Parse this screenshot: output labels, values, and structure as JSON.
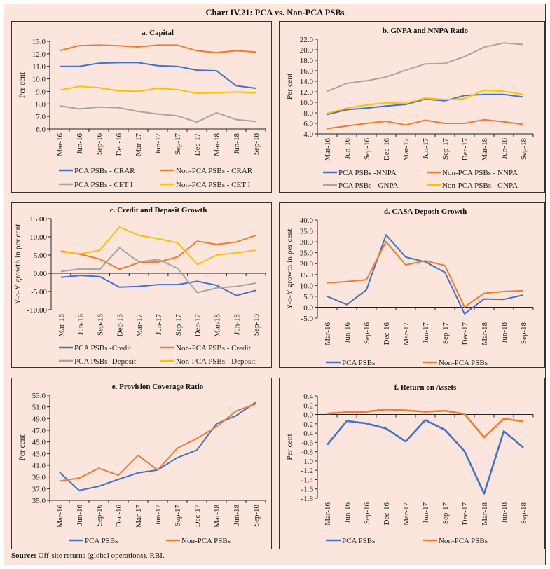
{
  "title": "Chart IV.21: PCA vs. Non-PCA PSBs",
  "source_label": "Source:",
  "source_text": "Off-site returns (global operations), RBI.",
  "colors": {
    "blue": "#4472c4",
    "orange": "#ed7d31",
    "gray": "#a5a5a5",
    "yellow": "#ffc000"
  },
  "chart_data": [
    {
      "id": "a",
      "type": "line",
      "title": "a. Capital",
      "ylabel": "Per cent",
      "ylim": [
        6,
        13
      ],
      "ytick_step": 1,
      "ytick_decimals": 1,
      "categories": [
        "Mar-16",
        "Jun-16",
        "Sep-16",
        "Dec-16",
        "Mar-17",
        "Jun-17",
        "Sep-17",
        "Dec-17",
        "Mar-18",
        "Jun-18",
        "Sep-18"
      ],
      "legend": "bottom",
      "series": [
        {
          "name": "PCA PSBs - CRAR",
          "color": "#4472c4",
          "values": [
            11.0,
            11.0,
            11.25,
            11.3,
            11.3,
            11.05,
            11.0,
            10.7,
            10.65,
            9.45,
            9.25
          ]
        },
        {
          "name": "Non-PCA PSBs - CRAR",
          "color": "#ed7d31",
          "values": [
            12.25,
            12.65,
            12.7,
            12.65,
            12.55,
            12.7,
            12.7,
            12.25,
            12.1,
            12.25,
            12.15
          ]
        },
        {
          "name": "PCA PSBs - CET I",
          "color": "#a5a5a5",
          "values": [
            7.85,
            7.6,
            7.75,
            7.7,
            7.4,
            7.2,
            7.05,
            6.55,
            7.3,
            6.75,
            6.6
          ]
        },
        {
          "name": "Non-PCA PSBs - CET I",
          "color": "#ffc000",
          "values": [
            9.1,
            9.4,
            9.3,
            9.05,
            9.0,
            9.25,
            9.15,
            8.85,
            8.9,
            8.95,
            8.9
          ]
        }
      ]
    },
    {
      "id": "b",
      "type": "line",
      "title": "b. GNPA and NNPA Ratio",
      "ylabel": "Per cent",
      "ylim": [
        4,
        22
      ],
      "ytick_step": 2,
      "ytick_decimals": 1,
      "categories": [
        "Mar-16",
        "Jun-16",
        "Sep-16",
        "Dec-16",
        "Mar-17",
        "Jun-17",
        "Sep-17",
        "Dec-17",
        "Mar-18",
        "Jun-18",
        "Sep-18"
      ],
      "legend": "bottom",
      "series": [
        {
          "name": "PCA PSBs -NNPA",
          "color": "#4472c4",
          "values": [
            7.7,
            8.6,
            8.9,
            9.3,
            9.6,
            10.6,
            10.3,
            11.3,
            11.5,
            11.5,
            11.0
          ]
        },
        {
          "name": "Non-PCA PSBs - NNPA",
          "color": "#ed7d31",
          "values": [
            5.0,
            5.5,
            6.0,
            6.4,
            5.7,
            6.6,
            6.0,
            6.0,
            6.7,
            6.3,
            5.8
          ]
        },
        {
          "name": "PCA PSBs - GNPA",
          "color": "#a5a5a5",
          "values": [
            12.1,
            13.6,
            14.1,
            14.8,
            16.1,
            17.3,
            17.4,
            18.7,
            20.5,
            21.3,
            21.0
          ]
        },
        {
          "name": "Non-PCA PSBs - GNPA",
          "color": "#ffc000",
          "values": [
            7.9,
            8.9,
            9.5,
            9.9,
            9.8,
            10.8,
            10.5,
            10.7,
            12.3,
            12.1,
            11.5
          ]
        }
      ]
    },
    {
      "id": "c",
      "type": "line",
      "title": "c. Credit and Deposit Growth",
      "ylabel": "Y-o-Y growth in per cent",
      "ylim": [
        -10,
        15
      ],
      "ytick_step": 5,
      "ytick_decimals": 2,
      "categories": [
        "Mar-16",
        "Jun-16",
        "Sep-16",
        "Dec-16",
        "Mar-17",
        "Jun-17",
        "Sep-17",
        "Dec-17",
        "Mar-18",
        "Jun-18",
        "Sep-18"
      ],
      "legend": "bottom",
      "series": [
        {
          "name": "PCA PSBs -Credit",
          "color": "#4472c4",
          "values": [
            -1.1,
            -0.6,
            -0.9,
            -3.8,
            -3.6,
            -3.1,
            -3.1,
            -2.2,
            -3.3,
            -6.1,
            -4.7
          ]
        },
        {
          "name": "Non-PCA PSBs - Credit",
          "color": "#ed7d31",
          "values": [
            6.1,
            5.2,
            3.9,
            1.1,
            2.9,
            3.1,
            4.5,
            8.8,
            7.9,
            8.6,
            10.4
          ]
        },
        {
          "name": "PCA PSBs -Deposit",
          "color": "#a5a5a5",
          "values": [
            0.5,
            1.2,
            1.1,
            7.0,
            3.1,
            3.8,
            1.3,
            -5.3,
            -4.0,
            -3.6,
            -2.7
          ]
        },
        {
          "name": "Non-PCA PSBs - Deposit",
          "color": "#ffc000",
          "values": [
            5.9,
            5.3,
            6.3,
            12.7,
            10.4,
            9.5,
            8.3,
            2.4,
            5.0,
            5.6,
            6.3
          ]
        }
      ]
    },
    {
      "id": "d",
      "type": "line",
      "title": "d. CASA Deposit Growth",
      "ylabel": "Y-o-Y growth in per cent",
      "ylim": [
        -5,
        40
      ],
      "ytick_step": 5,
      "ytick_decimals": 1,
      "categories": [
        "Mar-16",
        "Jun-16",
        "Sep-16",
        "Dec-16",
        "Mar-17",
        "Jun-17",
        "Sep-17",
        "Dec-17",
        "Mar-18",
        "Jun-18",
        "Sep-18"
      ],
      "legend": "bottom",
      "series": [
        {
          "name": "PCA PSBs",
          "color": "#4472c4",
          "values": [
            5.0,
            1.2,
            8.0,
            33.2,
            23.0,
            20.8,
            16.0,
            -3.0,
            3.8,
            3.6,
            5.6
          ]
        },
        {
          "name": "Non-PCA PSBs",
          "color": "#ed7d31",
          "values": [
            11.2,
            11.8,
            12.6,
            30.1,
            19.4,
            21.3,
            19.1,
            0.1,
            6.4,
            7.2,
            7.6
          ]
        }
      ]
    },
    {
      "id": "e",
      "type": "line",
      "title": "e. Provision Coverage Ratio",
      "ylabel": "Per cent",
      "ylim": [
        35,
        53
      ],
      "ytick_step": 2,
      "ytick_decimals": 1,
      "categories": [
        "Mar-16",
        "Jun-16",
        "Sep-16",
        "Dec-16",
        "Mar-17",
        "Jun-17",
        "Sep-17",
        "Dec-17",
        "Mar-18",
        "Jun-18",
        "Sep-18"
      ],
      "legend": "bottom",
      "series": [
        {
          "name": "PCA PSBs",
          "color": "#4472c4",
          "values": [
            39.8,
            36.7,
            37.4,
            38.6,
            39.7,
            40.2,
            42.3,
            43.6,
            48.1,
            49.5,
            51.8
          ]
        },
        {
          "name": "Non-PCA PSBs",
          "color": "#ed7d31",
          "values": [
            38.3,
            38.8,
            40.5,
            39.3,
            42.7,
            40.2,
            43.9,
            45.6,
            47.6,
            50.3,
            51.5
          ]
        }
      ]
    },
    {
      "id": "f",
      "type": "line",
      "title": "f. Return on Assets",
      "ylabel": "Per cent",
      "ylim": [
        -1.8,
        0.4
      ],
      "ytick_step": 0.2,
      "ytick_decimals": 1,
      "categories": [
        "Mar-16",
        "Jun-16",
        "Sep-16",
        "Dec-16",
        "Mar-17",
        "Jun-17",
        "Sep-17",
        "Dec-17",
        "Mar-18",
        "Jun-18",
        "Sep-18"
      ],
      "legend": "bottom",
      "series": [
        {
          "name": "PCA PSBs",
          "color": "#4472c4",
          "values": [
            -0.65,
            -0.14,
            -0.19,
            -0.3,
            -0.58,
            -0.12,
            -0.33,
            -0.79,
            -1.7,
            -0.36,
            -0.71
          ]
        },
        {
          "name": "Non-PCA PSBs",
          "color": "#ed7d31",
          "values": [
            0.02,
            0.05,
            0.06,
            0.11,
            0.09,
            0.06,
            0.08,
            0.01,
            -0.49,
            -0.09,
            -0.15
          ]
        }
      ]
    }
  ]
}
